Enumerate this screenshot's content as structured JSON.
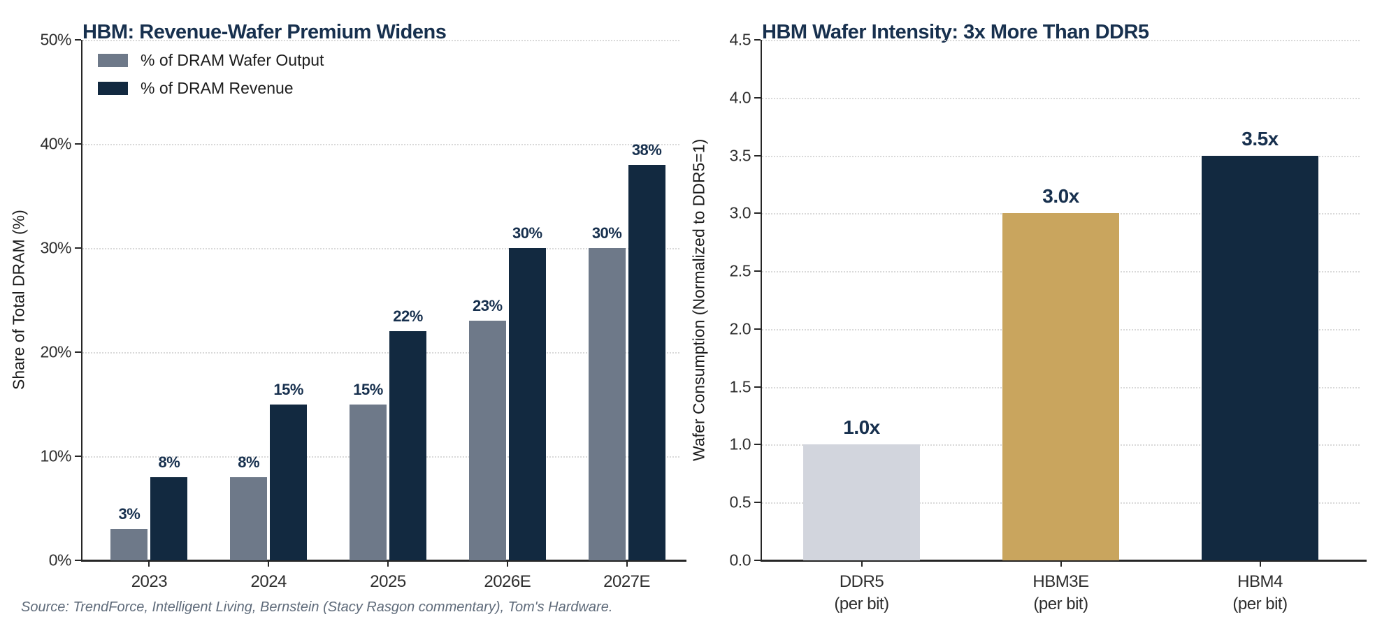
{
  "source": "Source: TrendForce, Intelligent Living, Bernstein (Stacy Rasgon commentary), Tom's Hardware.",
  "colors": {
    "navy": "#122940",
    "slate_gray": "#6e7989",
    "gold": "#c9a55e",
    "light_gray": "#d2d5dd",
    "title_navy": "#17304e",
    "grid": "#d9d9d9",
    "source_text": "#5f6b7a"
  },
  "chart_data": [
    {
      "type": "bar",
      "title": "HBM: Revenue-Wafer Premium Widens",
      "ylabel": "Share of Total DRAM (%)",
      "xlabel": "",
      "ylim": [
        0,
        50
      ],
      "yticks": [
        0,
        10,
        20,
        30,
        40,
        50
      ],
      "ytick_labels": [
        "0%",
        "10%",
        "20%",
        "30%",
        "40%",
        "50%"
      ],
      "categories": [
        "2023",
        "2024",
        "2025",
        "2026E",
        "2027E"
      ],
      "series": [
        {
          "name": "% of DRAM Wafer Output",
          "color": "#6e7989",
          "values": [
            3,
            8,
            15,
            23,
            30
          ],
          "value_labels": [
            "3%",
            "8%",
            "15%",
            "23%",
            "30%"
          ]
        },
        {
          "name": "% of DRAM Revenue",
          "color": "#122940",
          "values": [
            8,
            15,
            22,
            30,
            38
          ],
          "value_labels": [
            "8%",
            "15%",
            "22%",
            "30%",
            "38%"
          ]
        }
      ],
      "grid": "horizontal dotted",
      "legend_position": "upper left"
    },
    {
      "type": "bar",
      "title": "HBM Wafer Intensity: 3x More Than DDR5",
      "ylabel": "Wafer Consumption (Normalized to DDR5=1)",
      "xlabel": "",
      "ylim": [
        0,
        4.5
      ],
      "yticks": [
        0,
        0.5,
        1.0,
        1.5,
        2.0,
        2.5,
        3.0,
        3.5,
        4.0,
        4.5
      ],
      "ytick_labels": [
        "0.0",
        "0.5",
        "1.0",
        "1.5",
        "2.0",
        "2.5",
        "3.0",
        "3.5",
        "4.0",
        "4.5"
      ],
      "categories": [
        "DDR5\n(per bit)",
        "HBM3E\n(per bit)",
        "HBM4\n(per bit)"
      ],
      "values": [
        1.0,
        3.0,
        3.5
      ],
      "value_labels": [
        "1.0x",
        "3.0x",
        "3.5x"
      ],
      "bar_colors": [
        "#d2d5dd",
        "#c9a55e",
        "#122940"
      ],
      "grid": "horizontal dotted",
      "legend_position": "none"
    }
  ]
}
